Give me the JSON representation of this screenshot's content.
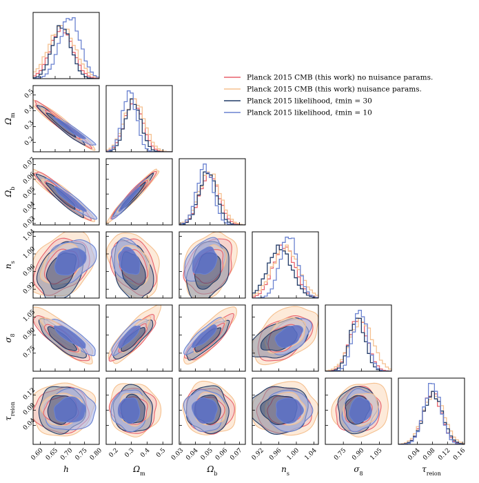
{
  "chart_data": {
    "type": "corner",
    "title": "",
    "legend": {
      "placement": "upper-right",
      "entries": [
        {
          "label": "Planck 2015 CMB (this work) no nuisance params.",
          "color": "#e8616b"
        },
        {
          "label": "Planck 2015 CMB (this work) nuisance params.",
          "color": "#f5c08f"
        },
        {
          "label": "Planck 2015 likelihood, ℓmin = 30",
          "color": "#1f3966"
        },
        {
          "label": "Planck 2015 likelihood, ℓmin = 10",
          "color": "#6a82d0"
        }
      ]
    },
    "parameters": [
      {
        "name": "h",
        "label": "h",
        "range": [
          0.575,
          0.8
        ],
        "ticks": [
          "0.60",
          "0.65",
          "0.70",
          "0.75",
          "0.80"
        ]
      },
      {
        "name": "omega_m",
        "label": "Ωm",
        "range": [
          0.14,
          0.56
        ],
        "ticks": [
          "0.2",
          "0.3",
          "0.4",
          "0.5"
        ]
      },
      {
        "name": "omega_b",
        "label": "Ωb",
        "range": [
          0.029,
          0.074
        ],
        "ticks": [
          "0.03",
          "0.04",
          "0.05",
          "0.06",
          "0.07"
        ]
      },
      {
        "name": "n_s",
        "label": "ns",
        "range": [
          0.9,
          1.05
        ],
        "ticks": [
          "0.92",
          "0.96",
          "1.00",
          "1.04"
        ]
      },
      {
        "name": "sigma_8",
        "label": "σ8",
        "range": [
          0.6,
          1.15
        ],
        "ticks": [
          "0.75",
          "0.90",
          "1.05"
        ]
      },
      {
        "name": "tau_reion",
        "label": "τreion",
        "range": [
          -0.01,
          0.165
        ],
        "ticks": [
          "0.04",
          "0.08",
          "0.12",
          "0.16"
        ]
      }
    ],
    "y_tick_labels": {
      "omega_m": [
        "0.2",
        "0.3",
        "0.4",
        "0.5"
      ],
      "omega_b": [
        "0.03",
        "0.04",
        "0.05",
        "0.06",
        "0.07"
      ],
      "n_s": [
        "0.92",
        "0.96",
        "1.00",
        "1.04"
      ],
      "sigma_8": [
        "0.75",
        "0.90",
        "1.05"
      ],
      "tau_reion": [
        "0.04",
        "0.08",
        "0.12"
      ]
    },
    "series": [
      {
        "name": "Planck 2015 CMB (this work) no nuisance params.",
        "means": [
          0.672,
          0.315,
          0.0495,
          0.972,
          0.875,
          0.08
        ],
        "sigmas": [
          0.038,
          0.058,
          0.0065,
          0.025,
          0.075,
          0.024
        ],
        "fill": "#f2c4c4",
        "edge": "#e8616b"
      },
      {
        "name": "Planck 2015 CMB (this work) nuisance params.",
        "means": [
          0.672,
          0.318,
          0.0495,
          0.975,
          0.9,
          0.083
        ],
        "sigmas": [
          0.045,
          0.065,
          0.0072,
          0.03,
          0.095,
          0.028
        ],
        "fill": "#fcdcc0",
        "edge": "#f5c08f"
      },
      {
        "name": "Planck 2015 likelihood, ℓmin = 30",
        "means": [
          0.672,
          0.31,
          0.0485,
          0.962,
          0.865,
          0.082
        ],
        "sigmas": [
          0.032,
          0.05,
          0.0058,
          0.027,
          0.065,
          0.025
        ],
        "fill": "#8a96a8",
        "edge": "#1f3966"
      },
      {
        "name": "Planck 2015 likelihood, ℓmin = 10",
        "means": [
          0.7,
          0.287,
          0.0465,
          0.983,
          0.89,
          0.08
        ],
        "sigmas": [
          0.035,
          0.045,
          0.0055,
          0.02,
          0.06,
          0.022
        ],
        "fill": "#aab6e6",
        "edge": "#6a82d0"
      }
    ],
    "correlations": {
      "h|omega_m": -0.97,
      "h|omega_b": -0.95,
      "h|n_s": 0.35,
      "h|sigma_8": -0.85,
      "h|tau_reion": 0.05,
      "omega_m|omega_b": 0.97,
      "omega_m|n_s": -0.3,
      "omega_m|sigma_8": 0.85,
      "omega_m|tau_reion": -0.05,
      "omega_b|n_s": 0.3,
      "omega_b|sigma_8": 0.85,
      "omega_b|tau_reion": -0.05,
      "n_s|sigma_8": 0.45,
      "n_s|tau_reion": 0.0,
      "sigma_8|tau_reion": 0.1
    }
  }
}
